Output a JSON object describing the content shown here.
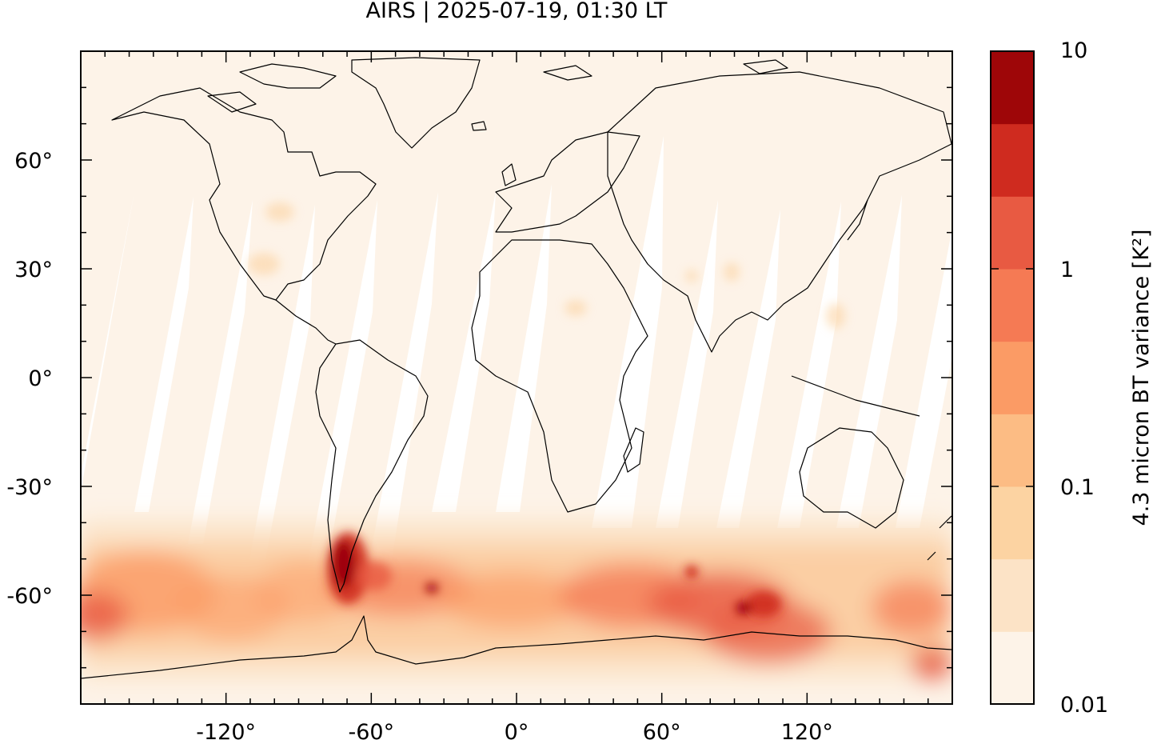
{
  "title": "AIRS | 2025-07-19, 01:30 LT",
  "map": {
    "projection": "equirectangular",
    "lon_range": [
      -180,
      180
    ],
    "lat_range": [
      -90,
      90
    ],
    "x_ticks": [
      {
        "value": -120,
        "label": "-120°"
      },
      {
        "value": -60,
        "label": "-60°"
      },
      {
        "value": 0,
        "label": "0°"
      },
      {
        "value": 60,
        "label": "60°"
      },
      {
        "value": 120,
        "label": "120°"
      }
    ],
    "y_ticks": [
      {
        "value": 60,
        "label": "60°"
      },
      {
        "value": 30,
        "label": "30°"
      },
      {
        "value": 0,
        "label": "0°"
      },
      {
        "value": -30,
        "label": "-30°"
      },
      {
        "value": -60,
        "label": "-60°"
      }
    ],
    "background_color": "#fdf3e8",
    "swath_gap_color": "#ffffff",
    "coastline_color": "#000000"
  },
  "colorbar": {
    "label": "4.3 micron BT variance [K²]",
    "scale": "log",
    "range": [
      0.01,
      10
    ],
    "ticks": [
      {
        "value": 10,
        "label": "10"
      },
      {
        "value": 1,
        "label": "1"
      },
      {
        "value": 0.1,
        "label": "0.1"
      },
      {
        "value": 0.01,
        "label": "0.01"
      }
    ],
    "colors": [
      "#fdf3e8",
      "#fce3c6",
      "#fcd3a2",
      "#fcbc84",
      "#fb9b65",
      "#f57a54",
      "#e85a42",
      "#cf2b1f",
      "#9e0608"
    ]
  }
}
